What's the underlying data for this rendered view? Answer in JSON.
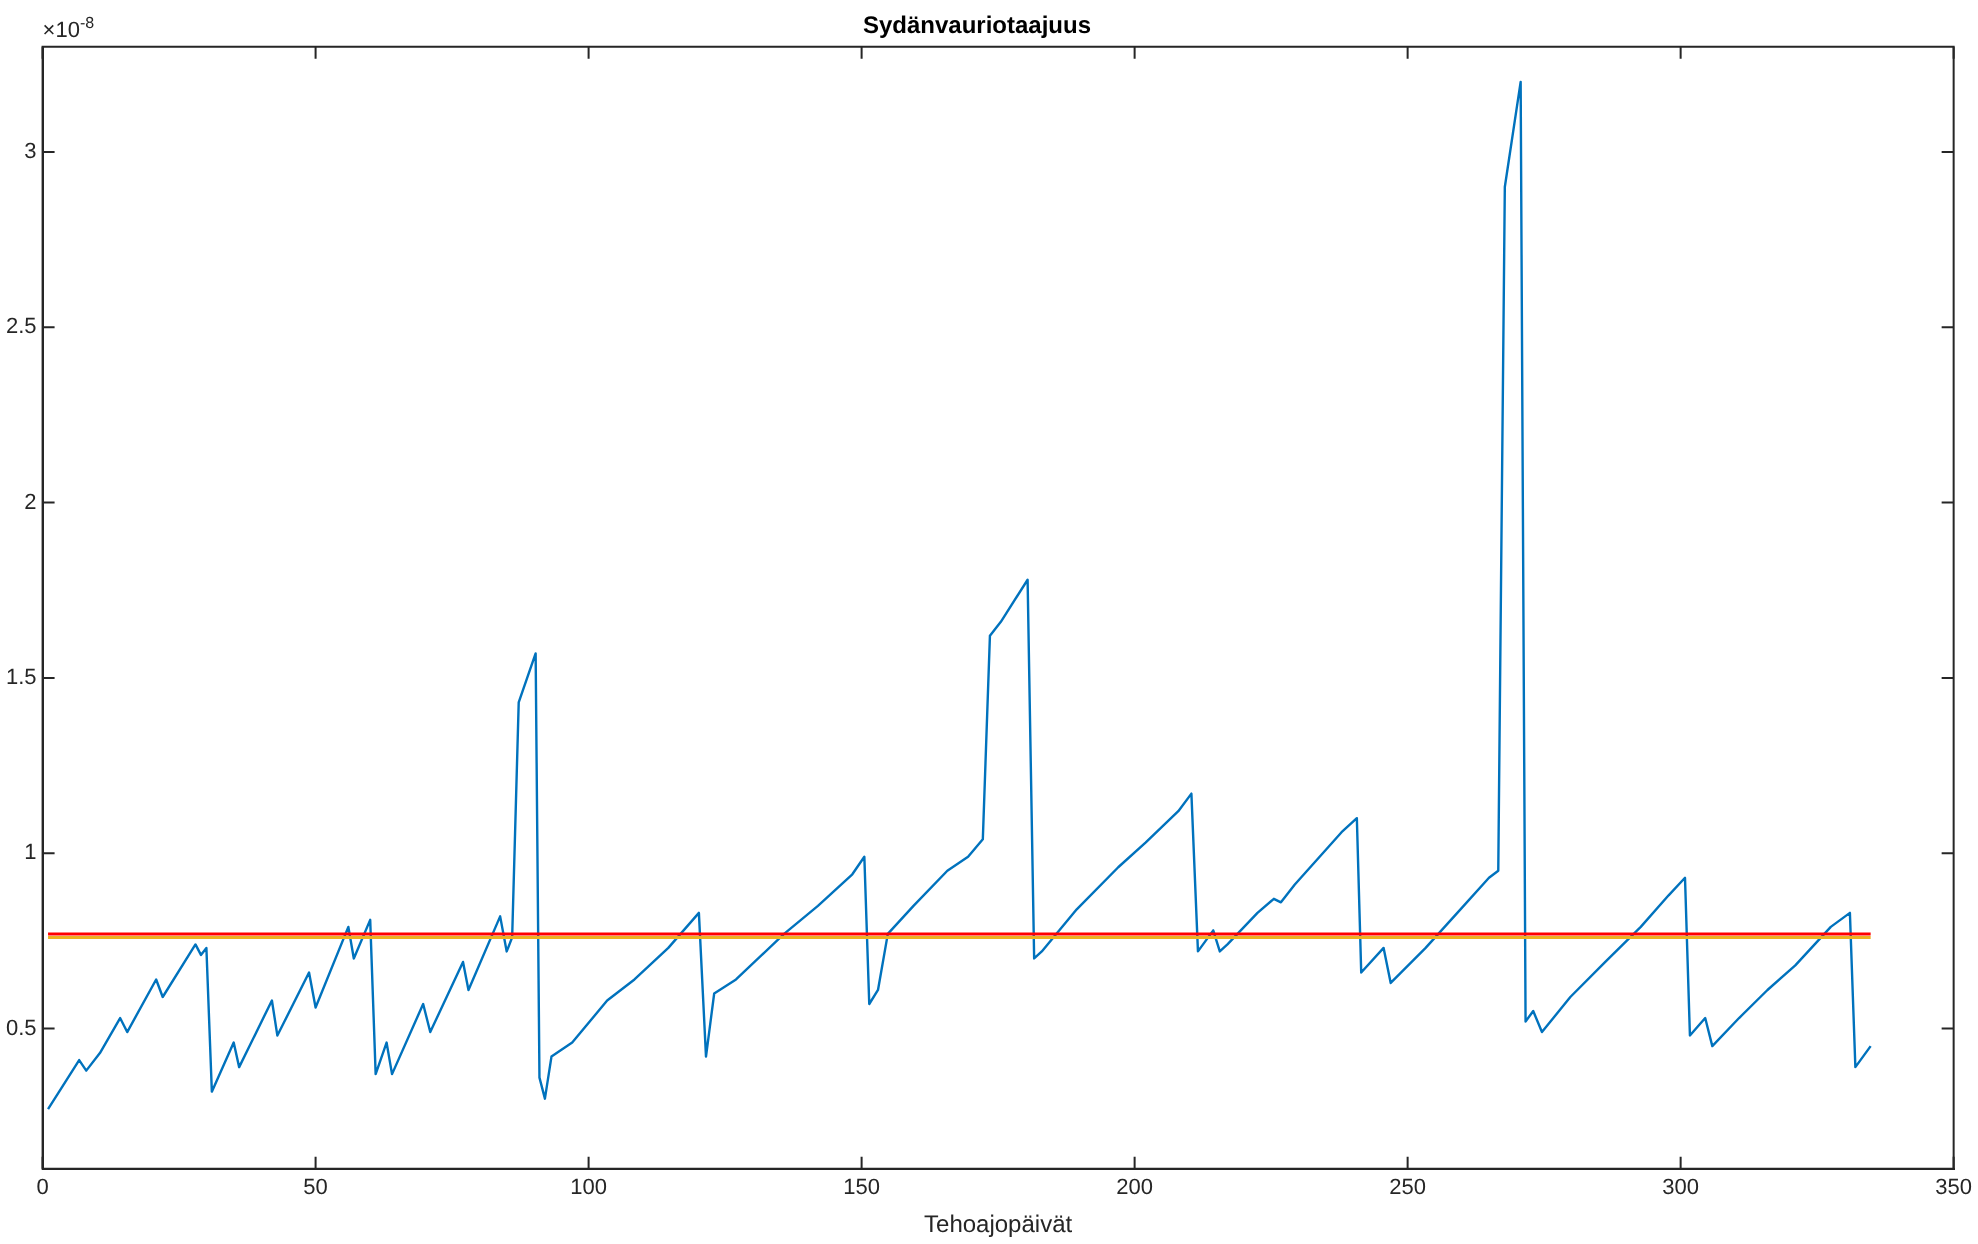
{
  "chart_data": {
    "type": "line",
    "title": "Sydänvauriotaajuus",
    "xlabel": "Tehoajopäivät",
    "annotations": [
      "×10$^{-8}$"
    ],
    "xlim": [
      0,
      350
    ],
    "xticks": [
      0,
      50,
      100,
      150,
      200,
      250,
      300,
      350
    ],
    "ylim": [
      0.1,
      3.3
    ],
    "yticks": [
      0.5,
      1,
      1.5,
      2,
      2.5,
      3
    ],
    "grid": false,
    "legend": false,
    "marker": "none",
    "line_style": "solid",
    "ref_lines": [
      {
        "axis": "y",
        "value": 0.76,
        "color": "#edb120"
      },
      {
        "axis": "y",
        "value": 0.77,
        "color": "#ff0000"
      }
    ],
    "series": [
      {
        "color": "#0072bd",
        "x": [
          1,
          6.7,
          8,
          10.5,
          14.2,
          15.5,
          20.8,
          22,
          28,
          29,
          30,
          31,
          35,
          36,
          42,
          43,
          48.8,
          50,
          56,
          57,
          60,
          61,
          63,
          64,
          69.7,
          71,
          77,
          78,
          83.8,
          85,
          86,
          87.2,
          90.3,
          91,
          92,
          93.2,
          97,
          103.4,
          108.4,
          114.6,
          120.2,
          121.5,
          123,
          127,
          135.8,
          142,
          148.3,
          150.5,
          151.4,
          153,
          154.8,
          159.5,
          165.7,
          169.5,
          172.2,
          173.5,
          175.5,
          180.4,
          181.6,
          183,
          189.4,
          197,
          202,
          208,
          210.4,
          211.6,
          214.4,
          215.6,
          217,
          222.5,
          225.5,
          226.8,
          229.3,
          237.9,
          240.7,
          241.5,
          245.6,
          246.9,
          253.3,
          259.1,
          264.9,
          266.6,
          267.8,
          270.7,
          271.6,
          273,
          274.6,
          279.8,
          286.2,
          292.7,
          297.8,
          300.8,
          301.7,
          304.5,
          305.8,
          310.7,
          315.9,
          321,
          327.5,
          331,
          332,
          334.8
        ],
        "values": [
          0.27,
          0.41,
          0.38,
          0.43,
          0.53,
          0.49,
          0.64,
          0.59,
          0.74,
          0.71,
          0.73,
          0.32,
          0.46,
          0.39,
          0.58,
          0.48,
          0.66,
          0.56,
          0.79,
          0.7,
          0.81,
          0.37,
          0.46,
          0.37,
          0.57,
          0.49,
          0.69,
          0.61,
          0.82,
          0.72,
          0.76,
          1.43,
          1.57,
          0.36,
          0.3,
          0.42,
          0.46,
          0.58,
          0.64,
          0.73,
          0.83,
          0.42,
          0.6,
          0.64,
          0.77,
          0.85,
          0.94,
          0.99,
          0.57,
          0.61,
          0.77,
          0.85,
          0.95,
          0.99,
          1.04,
          1.62,
          1.66,
          1.78,
          0.7,
          0.72,
          0.84,
          0.96,
          1.03,
          1.12,
          1.17,
          0.72,
          0.78,
          0.72,
          0.74,
          0.83,
          0.87,
          0.86,
          0.91,
          1.06,
          1.1,
          0.66,
          0.73,
          0.63,
          0.73,
          0.83,
          0.93,
          0.95,
          2.9,
          3.2,
          0.52,
          0.55,
          0.49,
          0.59,
          0.69,
          0.79,
          0.88,
          0.93,
          0.48,
          0.53,
          0.45,
          0.53,
          0.61,
          0.68,
          0.79,
          0.83,
          0.39,
          0.45
        ]
      }
    ]
  }
}
